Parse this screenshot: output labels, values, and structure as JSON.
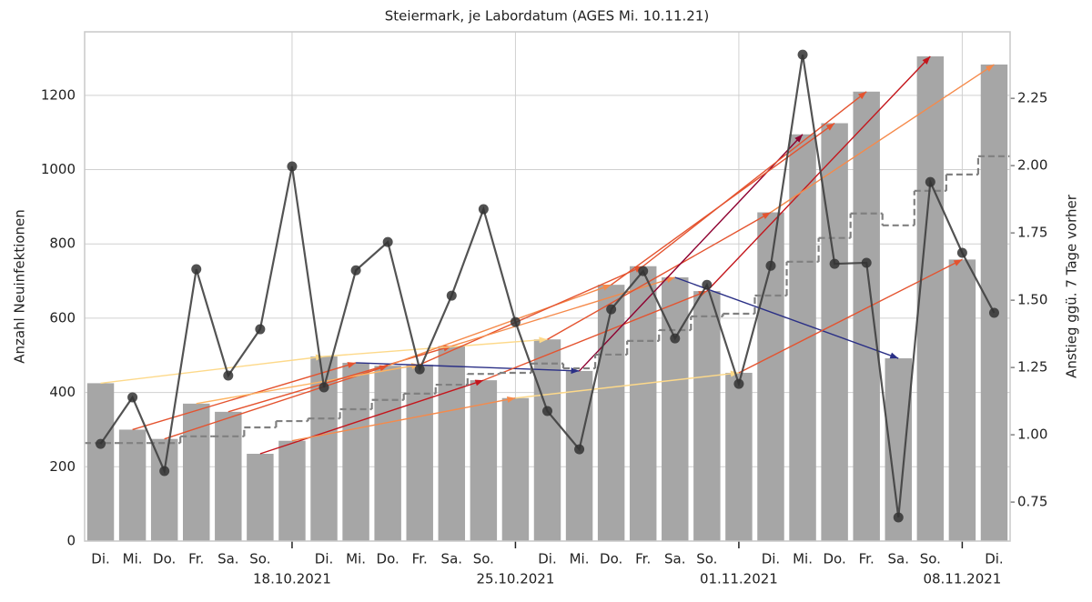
{
  "chart_data": {
    "type": "bar",
    "title": "Steiermark, je Labordatum (AGES Mi. 10.11.21)",
    "ylabel": "Anzahl Neuinfektionen",
    "y2label": "Anstieg ggü. 7 Tage vorher",
    "categories": [
      "Di.",
      "Mi.",
      "Do.",
      "Fr.",
      "Sa.",
      "So.",
      null,
      "Di.",
      "Mi.",
      "Do.",
      "Fr.",
      "Sa.",
      "So.",
      null,
      "Di.",
      "Mi.",
      "Do.",
      "Fr.",
      "Sa.",
      "So.",
      null,
      "Di.",
      "Mi.",
      "Do.",
      "Fr.",
      "Sa.",
      "So.",
      null,
      "Di."
    ],
    "week_labels": [
      null,
      null,
      null,
      null,
      null,
      null,
      "18.10.2021",
      null,
      null,
      null,
      null,
      null,
      null,
      "25.10.2021",
      null,
      null,
      null,
      null,
      null,
      null,
      "01.11.2021",
      null,
      null,
      null,
      null,
      null,
      null,
      "08.11.2021",
      null
    ],
    "series": [
      {
        "type": "bar",
        "color": "#a6a6a6",
        "values": [
          425,
          300,
          275,
          370,
          348,
          235,
          270,
          497,
          480,
          472,
          475,
          525,
          433,
          385,
          543,
          458,
          690,
          740,
          710,
          673,
          453,
          885,
          1095,
          1125,
          1210,
          492,
          1305,
          758,
          1283
        ]
      },
      {
        "type": "step",
        "color": "#808080",
        "values": [
          264,
          264,
          264,
          282,
          282,
          306,
          323,
          330,
          355,
          380,
          397,
          421,
          450,
          453,
          478,
          465,
          502,
          539,
          568,
          605,
          612,
          661,
          752,
          816,
          882,
          850,
          943,
          987,
          1036
        ]
      },
      {
        "type": "line",
        "axis": "y2",
        "color": "#404040",
        "values": [
          0.966,
          1.139,
          0.865,
          1.615,
          1.22,
          1.392,
          1.997,
          1.176,
          1.611,
          1.716,
          1.243,
          1.517,
          1.838,
          1.419,
          1.088,
          0.946,
          1.466,
          1.608,
          1.358,
          1.557,
          1.189,
          1.628,
          2.412,
          1.635,
          1.639,
          0.693,
          1.939,
          1.676,
          1.453
        ]
      }
    ],
    "ylim": [
      0,
      1371
    ],
    "yticks": [
      0,
      200,
      400,
      600,
      800,
      1000,
      1200
    ],
    "y2lim": [
      0.605,
      2.497
    ],
    "y2ticks": [
      0.75,
      {
        "value": 1,
        "label": "1.00"
      },
      1.25,
      {
        "value": 1.5,
        "label": "1.50"
      },
      1.75,
      {
        "value": 2,
        "label": "2.00"
      },
      2.25
    ],
    "grid": true
  }
}
